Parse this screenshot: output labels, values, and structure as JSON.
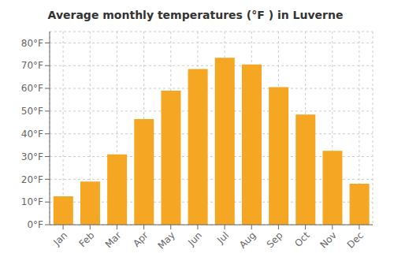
{
  "chart_data": {
    "type": "bar",
    "title": "Average monthly temperatures (°F ) in Luverne",
    "categories": [
      "Jan",
      "Feb",
      "Mar",
      "Apr",
      "May",
      "Jun",
      "Jul",
      "Aug",
      "Sep",
      "Oct",
      "Nov",
      "Dec"
    ],
    "values": [
      12.5,
      19.0,
      31.0,
      46.5,
      59.0,
      68.5,
      73.5,
      70.5,
      60.5,
      48.5,
      32.5,
      18.0
    ],
    "color": "#F5A623",
    "ylim": [
      0,
      85
    ],
    "yticks": [
      {
        "value": 0,
        "label": "0°F"
      },
      {
        "value": 10,
        "label": "10°F"
      },
      {
        "value": 20,
        "label": "20°F"
      },
      {
        "value": 30,
        "label": "30°F"
      },
      {
        "value": 40,
        "label": "40°F"
      },
      {
        "value": 50,
        "label": "50°F"
      },
      {
        "value": 60,
        "label": "60°F"
      },
      {
        "value": 70,
        "label": "70°F"
      },
      {
        "value": 80,
        "label": "80°F"
      }
    ],
    "grid": true
  }
}
